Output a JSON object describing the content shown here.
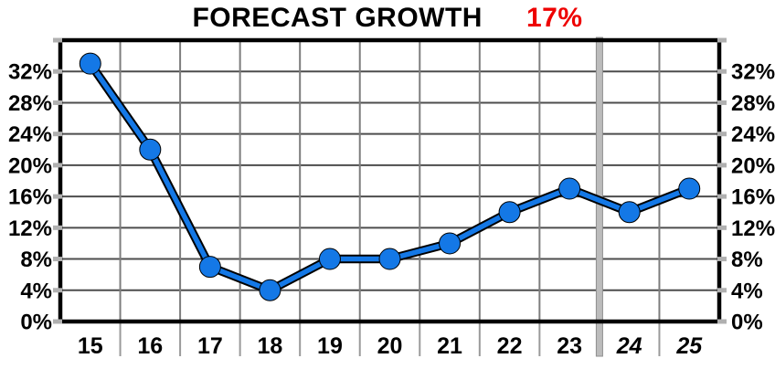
{
  "title": {
    "text": "FORECAST GROWTH",
    "value": "17%",
    "value_color": "#ee0000",
    "text_color": "#000000"
  },
  "chart_data": {
    "type": "line",
    "title": "FORECAST GROWTH 17%",
    "categories": [
      "15",
      "16",
      "17",
      "18",
      "19",
      "20",
      "21",
      "22",
      "23",
      "24",
      "25"
    ],
    "values": [
      33,
      22,
      7,
      4,
      8,
      8,
      10,
      14,
      17,
      14,
      17
    ],
    "unit": "%",
    "xlabel": "",
    "ylabel": "",
    "ylim": [
      0,
      36
    ],
    "y_tick_values": [
      0,
      4,
      8,
      12,
      16,
      20,
      24,
      28,
      32
    ],
    "y_tick_labels": [
      "0%",
      "4%",
      "8%",
      "12%",
      "16%",
      "20%",
      "24%",
      "28%",
      "32%"
    ],
    "y_axis_sides": "both",
    "grid": true,
    "forecast_start_index": 9,
    "legend": "none",
    "colors": {
      "line": "#1478e6",
      "point": "#1478e6",
      "line_outline": "#000000",
      "h_grid": "#4d4d4d",
      "v_grid": "#7d7d7d",
      "border": "#000000",
      "tick": "#b0b0b0",
      "divider_fill": "#bcbcbc",
      "divider_edge": "#8f8f8f",
      "label": "#000000"
    }
  }
}
